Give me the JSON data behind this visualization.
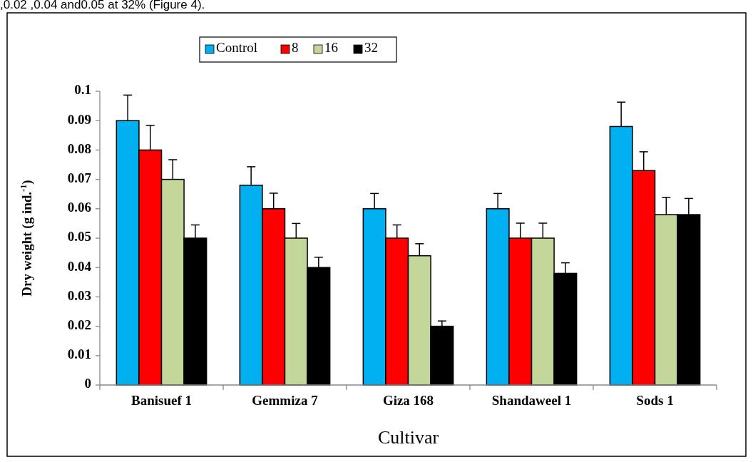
{
  "chart_data": {
    "type": "bar",
    "xlabel": "Cultivar",
    "ylabel": "Dry weight (g ind.$^{-1}$)",
    "annotations": [
      ",0.02 ,0.04 and0.05 at 32% (Figure 4)."
    ],
    "categories": [
      "Banisuef 1",
      "Gemmiza 7",
      "Giza 168",
      "Shandaweel 1",
      "Sods 1"
    ],
    "series": [
      {
        "name": "Control",
        "color": "#00b0f0",
        "values": [
          0.09,
          0.068,
          0.06,
          0.06,
          0.088
        ],
        "errors": [
          0.0087,
          0.0063,
          0.0052,
          0.0052,
          0.0083
        ]
      },
      {
        "name": "8",
        "color": "#ff0000",
        "values": [
          0.08,
          0.06,
          0.05,
          0.05,
          0.073
        ],
        "errors": [
          0.0084,
          0.0053,
          0.0045,
          0.0051,
          0.0064
        ]
      },
      {
        "name": "16",
        "color": "#c4d79b",
        "values": [
          0.07,
          0.05,
          0.044,
          0.05,
          0.058
        ],
        "errors": [
          0.0067,
          0.005,
          0.0041,
          0.0051,
          0.0059
        ]
      },
      {
        "name": "32",
        "color": "#000000",
        "values": [
          0.05,
          0.04,
          0.02,
          0.038,
          0.058
        ],
        "errors": [
          0.0045,
          0.0035,
          0.0018,
          0.0036,
          0.0055
        ]
      }
    ],
    "ylim": [
      0,
      0.1
    ],
    "yticks": [
      0,
      0.01,
      0.02,
      0.03,
      0.04,
      0.05,
      0.06,
      0.07,
      0.08,
      0.09,
      0.1
    ],
    "legend": "top left",
    "grid": false
  }
}
